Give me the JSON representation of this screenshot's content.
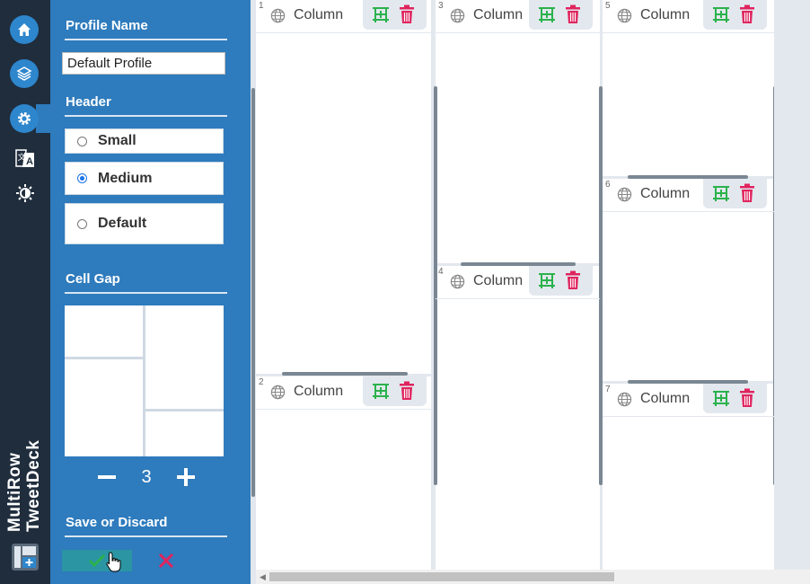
{
  "rail": {
    "items": [
      {
        "icon": "home-icon"
      },
      {
        "icon": "layers-icon"
      },
      {
        "icon": "gear-icon"
      },
      {
        "icon": "translate-icon"
      },
      {
        "icon": "brightness-icon"
      }
    ],
    "brand_line1": "MultiRow",
    "brand_line2": "TweetDeck"
  },
  "panel": {
    "profile_heading": "Profile Name",
    "profile_value": "Default Profile",
    "header_heading": "Header",
    "header_options": [
      {
        "label": "Small",
        "selected": false
      },
      {
        "label": "Medium",
        "selected": true
      },
      {
        "label": "Default",
        "selected": false
      }
    ],
    "gap_heading": "Cell Gap",
    "gap_value": "3",
    "save_heading": "Save or Discard"
  },
  "columns": [
    {
      "num": "1",
      "title": "Column"
    },
    {
      "num": "2",
      "title": "Column"
    },
    {
      "num": "3",
      "title": "Column"
    },
    {
      "num": "4",
      "title": "Column"
    },
    {
      "num": "5",
      "title": "Column"
    },
    {
      "num": "6",
      "title": "Column"
    },
    {
      "num": "7",
      "title": "Column"
    }
  ],
  "colors": {
    "rail": "#1f2d3d",
    "panel": "#2e7bbd",
    "accent": "#2e86cc",
    "add": "#2bb24c",
    "delete": "#e0245e"
  }
}
